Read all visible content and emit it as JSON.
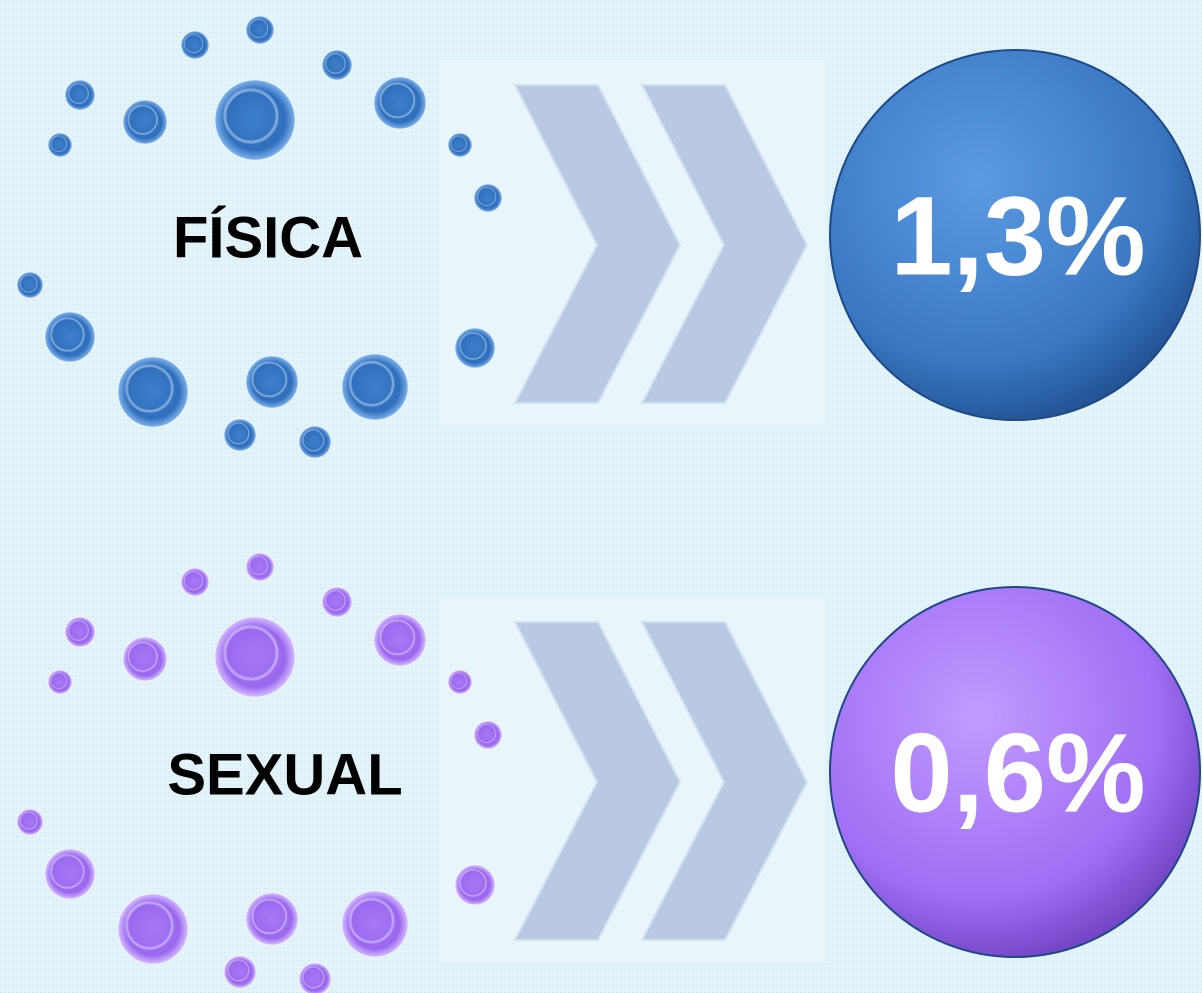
{
  "items": [
    {
      "label": "FÍSICA",
      "value": "1,3%"
    },
    {
      "label": "SEXUAL",
      "value": "0,6%"
    }
  ]
}
